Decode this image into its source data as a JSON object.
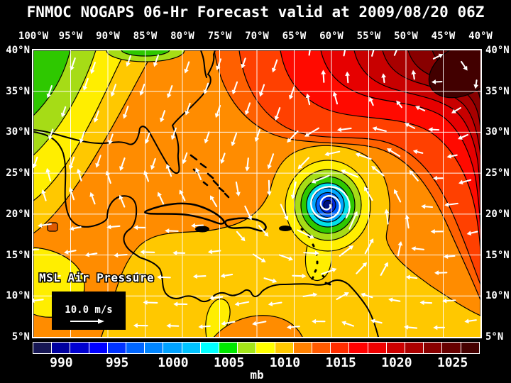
{
  "title": "FNMOC NOGAPS 06-Hr Forecast valid at 2009/08/20 06Z",
  "axes": {
    "lon_labels": [
      "100°W",
      "95°W",
      "90°W",
      "85°W",
      "80°W",
      "75°W",
      "70°W",
      "65°W",
      "60°W",
      "55°W",
      "50°W",
      "45°W",
      "40°W"
    ],
    "lat_labels": [
      "40°N",
      "35°N",
      "30°N",
      "25°N",
      "20°N",
      "15°N",
      "10°N",
      "5°N"
    ],
    "grid_interval_deg": 5
  },
  "map": {
    "field_label": "MSL Air Pressure",
    "wind_scale_label": "10.0 m/s",
    "storm": {
      "type": "tropical-cyclone",
      "center_lon_deg_w": 61,
      "center_lat_deg_n": 21
    },
    "high_pressure_region": "upper-right (western Atlantic subtropical high)"
  },
  "colorbar": {
    "unit_label": "mb",
    "ticks": [
      990,
      995,
      1000,
      1005,
      1010,
      1015,
      1020,
      1025
    ],
    "range_mb": [
      987.5,
      1027.5
    ],
    "cell_colors": [
      "#161654",
      "#0000a0",
      "#0000d0",
      "#0000ff",
      "#0033ff",
      "#0066ff",
      "#0085ff",
      "#00a2ff",
      "#00c3ff",
      "#00ffff",
      "#00e800",
      "#a4e619",
      "#ffff00",
      "#ffc800",
      "#ff8000",
      "#ff5a00",
      "#ff2d00",
      "#ff0000",
      "#ef0000",
      "#cd0000",
      "#ab0000",
      "#890000",
      "#670000",
      "#450000"
    ]
  },
  "field_colors": {
    "green": "#2ec800",
    "yellow_green": "#a6dc16",
    "yellow": "#ffee00",
    "gold": "#ffc800",
    "orange": "#ff8c00",
    "deep_orange": "#ff6000",
    "red_orange": "#ff4000",
    "red": "#ff0a00",
    "red2": "#e60000",
    "dark_red": "#c80000",
    "dark_red2": "#a80000",
    "maroon": "#880000",
    "dark_maroon": "#640000",
    "deepest_maroon": "#420000",
    "dark_orange_blob": "#e05a00",
    "storm_rings": [
      "#ffee00",
      "#a6dc16",
      "#2ec800",
      "#00e0e8",
      "#00a6ff",
      "#0064ff",
      "#0028d8",
      "#001080"
    ],
    "grid": "#ffffff",
    "coast": "#000000",
    "arrows": "#ffffff"
  },
  "background": "#000000",
  "text_color": "#ffffff"
}
